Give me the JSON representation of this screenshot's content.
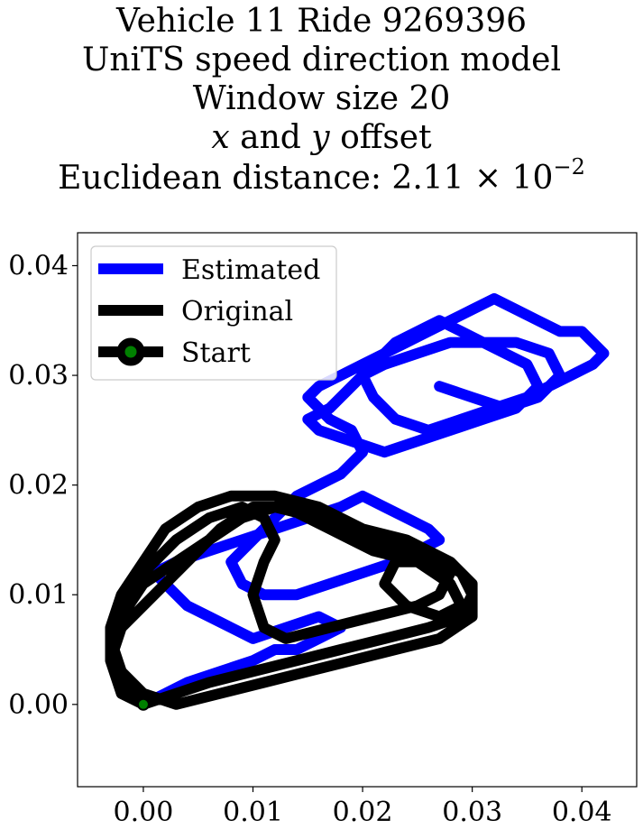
{
  "title": {
    "line1": "Vehicle 11 Ride 9269396",
    "line2": "UniTS speed direction model",
    "line3": "Window size 20",
    "line4_var_x": "x",
    "line4_and": " and ",
    "line4_var_y": "y",
    "line4_rest": " offset",
    "line5_prefix": "Euclidean distance: 2.11 × 10",
    "line5_exponent": "−2"
  },
  "chart_data": {
    "type": "line",
    "title": "Vehicle 11 Ride 9269396 UniTS speed direction model Window size 20 x and y offset Euclidean distance: 2.11 × 10^-2",
    "xlabel": "",
    "ylabel": "",
    "xlim": [
      -0.006,
      0.045
    ],
    "ylim": [
      -0.0075,
      0.043
    ],
    "x_ticks": [
      0.0,
      0.01,
      0.02,
      0.03,
      0.04
    ],
    "x_tick_labels": [
      "0.00",
      "0.01",
      "0.02",
      "0.03",
      "0.04"
    ],
    "y_ticks": [
      0.0,
      0.01,
      0.02,
      0.03,
      0.04
    ],
    "y_tick_labels": [
      "0.00",
      "0.01",
      "0.02",
      "0.03",
      "0.04"
    ],
    "grid": false,
    "legend_position": "top-left",
    "series": [
      {
        "name": "Estimated",
        "color": "#0000ff",
        "points": [
          [
            0.0,
            0.0
          ],
          [
            0.002,
            0.001
          ],
          [
            0.004,
            0.002
          ],
          [
            0.007,
            0.003
          ],
          [
            0.01,
            0.004
          ],
          [
            0.012,
            0.005
          ],
          [
            0.014,
            0.005
          ],
          [
            0.016,
            0.006
          ],
          [
            0.018,
            0.007
          ],
          [
            0.016,
            0.008
          ],
          [
            0.013,
            0.007
          ],
          [
            0.01,
            0.006
          ],
          [
            0.008,
            0.007
          ],
          [
            0.006,
            0.008
          ],
          [
            0.004,
            0.009
          ],
          [
            0.002,
            0.011
          ],
          [
            0.001,
            0.012
          ],
          [
            0.003,
            0.013
          ],
          [
            0.006,
            0.014
          ],
          [
            0.009,
            0.015
          ],
          [
            0.012,
            0.016
          ],
          [
            0.015,
            0.017
          ],
          [
            0.018,
            0.018
          ],
          [
            0.02,
            0.019
          ],
          [
            0.022,
            0.018
          ],
          [
            0.024,
            0.017
          ],
          [
            0.026,
            0.016
          ],
          [
            0.027,
            0.015
          ],
          [
            0.025,
            0.014
          ],
          [
            0.023,
            0.013
          ],
          [
            0.02,
            0.012
          ],
          [
            0.017,
            0.011
          ],
          [
            0.014,
            0.01
          ],
          [
            0.011,
            0.01
          ],
          [
            0.009,
            0.011
          ],
          [
            0.008,
            0.013
          ],
          [
            0.01,
            0.015
          ],
          [
            0.012,
            0.017
          ],
          [
            0.014,
            0.019
          ],
          [
            0.016,
            0.02
          ],
          [
            0.018,
            0.021
          ],
          [
            0.02,
            0.023
          ],
          [
            0.019,
            0.025
          ],
          [
            0.017,
            0.026
          ],
          [
            0.016,
            0.027
          ],
          [
            0.015,
            0.028
          ],
          [
            0.016,
            0.029
          ],
          [
            0.018,
            0.03
          ],
          [
            0.02,
            0.031
          ],
          [
            0.022,
            0.032
          ],
          [
            0.024,
            0.033
          ],
          [
            0.026,
            0.034
          ],
          [
            0.028,
            0.035
          ],
          [
            0.03,
            0.036
          ],
          [
            0.032,
            0.037
          ],
          [
            0.034,
            0.036
          ],
          [
            0.036,
            0.035
          ],
          [
            0.038,
            0.034
          ],
          [
            0.04,
            0.034
          ],
          [
            0.042,
            0.032
          ],
          [
            0.041,
            0.031
          ],
          [
            0.039,
            0.03
          ],
          [
            0.037,
            0.029
          ],
          [
            0.035,
            0.028
          ],
          [
            0.032,
            0.027
          ],
          [
            0.029,
            0.026
          ],
          [
            0.026,
            0.025
          ],
          [
            0.023,
            0.026
          ],
          [
            0.021,
            0.028
          ],
          [
            0.02,
            0.03
          ],
          [
            0.022,
            0.031
          ],
          [
            0.025,
            0.032
          ],
          [
            0.028,
            0.033
          ],
          [
            0.031,
            0.033
          ],
          [
            0.033,
            0.032
          ],
          [
            0.035,
            0.031
          ],
          [
            0.036,
            0.029
          ],
          [
            0.034,
            0.027
          ],
          [
            0.031,
            0.026
          ],
          [
            0.028,
            0.025
          ],
          [
            0.025,
            0.024
          ],
          [
            0.022,
            0.023
          ],
          [
            0.019,
            0.024
          ],
          [
            0.016,
            0.025
          ],
          [
            0.015,
            0.026
          ],
          [
            0.017,
            0.027
          ],
          [
            0.019,
            0.029
          ],
          [
            0.021,
            0.031
          ],
          [
            0.023,
            0.033
          ],
          [
            0.025,
            0.034
          ],
          [
            0.027,
            0.035
          ],
          [
            0.029,
            0.034
          ],
          [
            0.031,
            0.033
          ],
          [
            0.034,
            0.033
          ],
          [
            0.037,
            0.032
          ],
          [
            0.038,
            0.03
          ],
          [
            0.036,
            0.028
          ],
          [
            0.033,
            0.027
          ],
          [
            0.03,
            0.028
          ],
          [
            0.027,
            0.029
          ]
        ]
      },
      {
        "name": "Original",
        "color": "#000000",
        "points": [
          [
            0.0,
            0.0
          ],
          [
            -0.002,
            0.002
          ],
          [
            -0.003,
            0.005
          ],
          [
            -0.002,
            0.008
          ],
          [
            0.0,
            0.011
          ],
          [
            0.003,
            0.013
          ],
          [
            0.006,
            0.015
          ],
          [
            0.009,
            0.017
          ],
          [
            0.012,
            0.018
          ],
          [
            0.016,
            0.017
          ],
          [
            0.02,
            0.015
          ],
          [
            0.024,
            0.014
          ],
          [
            0.027,
            0.013
          ],
          [
            0.029,
            0.012
          ],
          [
            0.03,
            0.01
          ],
          [
            0.029,
            0.008
          ],
          [
            0.026,
            0.007
          ],
          [
            0.022,
            0.006
          ],
          [
            0.018,
            0.005
          ],
          [
            0.014,
            0.004
          ],
          [
            0.01,
            0.003
          ],
          [
            0.006,
            0.002
          ],
          [
            0.003,
            0.001
          ],
          [
            0.0,
            0.0
          ],
          [
            -0.002,
            0.001
          ],
          [
            -0.003,
            0.004
          ],
          [
            -0.002,
            0.007
          ],
          [
            0.001,
            0.01
          ],
          [
            0.004,
            0.013
          ],
          [
            0.007,
            0.016
          ],
          [
            0.01,
            0.018
          ],
          [
            0.013,
            0.018
          ],
          [
            0.017,
            0.016
          ],
          [
            0.021,
            0.014
          ],
          [
            0.025,
            0.013
          ],
          [
            0.028,
            0.011
          ],
          [
            0.029,
            0.009
          ],
          [
            0.027,
            0.008
          ],
          [
            0.024,
            0.009
          ],
          [
            0.022,
            0.011
          ],
          [
            0.023,
            0.013
          ],
          [
            0.026,
            0.013
          ],
          [
            0.028,
            0.012
          ],
          [
            0.027,
            0.01
          ],
          [
            0.025,
            0.009
          ],
          [
            0.021,
            0.008
          ],
          [
            0.017,
            0.007
          ],
          [
            0.013,
            0.006
          ],
          [
            0.011,
            0.007
          ],
          [
            0.01,
            0.01
          ],
          [
            0.011,
            0.013
          ],
          [
            0.012,
            0.015
          ],
          [
            0.011,
            0.017
          ],
          [
            0.009,
            0.018
          ],
          [
            0.006,
            0.017
          ],
          [
            0.003,
            0.015
          ],
          [
            0.0,
            0.012
          ],
          [
            -0.002,
            0.009
          ],
          [
            -0.003,
            0.006
          ],
          [
            -0.002,
            0.003
          ],
          [
            0.0,
            0.001
          ],
          [
            0.003,
            0.0
          ],
          [
            0.007,
            0.001
          ],
          [
            0.011,
            0.002
          ],
          [
            0.015,
            0.003
          ],
          [
            0.019,
            0.004
          ],
          [
            0.023,
            0.005
          ],
          [
            0.027,
            0.006
          ],
          [
            0.03,
            0.008
          ],
          [
            0.03,
            0.011
          ],
          [
            0.028,
            0.013
          ],
          [
            0.024,
            0.015
          ],
          [
            0.02,
            0.016
          ],
          [
            0.016,
            0.018
          ],
          [
            0.012,
            0.019
          ],
          [
            0.008,
            0.019
          ],
          [
            0.005,
            0.018
          ],
          [
            0.002,
            0.016
          ],
          [
            0.0,
            0.013
          ],
          [
            -0.002,
            0.01
          ],
          [
            -0.003,
            0.007
          ],
          [
            -0.003,
            0.004
          ],
          [
            -0.002,
            0.001
          ],
          [
            0.0,
            0.0
          ]
        ]
      }
    ],
    "start": {
      "label": "Start",
      "x": 0.0,
      "y": 0.0,
      "marker_color": "#008000",
      "edge_color": "#000000"
    }
  },
  "legend": {
    "items": [
      {
        "label": "Estimated",
        "color": "#0000ff",
        "kind": "line"
      },
      {
        "label": "Original",
        "color": "#000000",
        "kind": "line"
      },
      {
        "label": "Start",
        "color": "#000000",
        "kind": "line-marker",
        "marker_color": "#008000"
      }
    ]
  }
}
